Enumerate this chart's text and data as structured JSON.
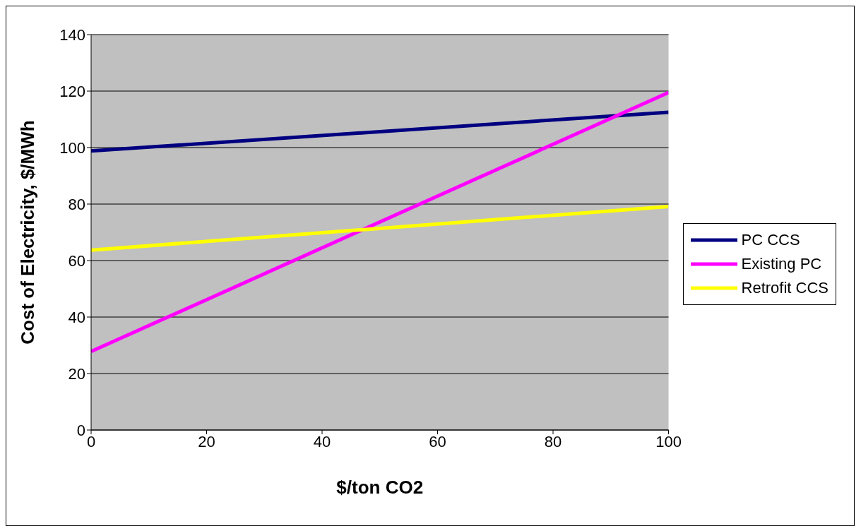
{
  "chart_data": {
    "type": "line",
    "xlabel": "$/ton CO2",
    "ylabel": "Cost of Electricity, $/MWh",
    "x": [
      0,
      100
    ],
    "series": [
      {
        "name": "PC CCS",
        "color": "#000080",
        "values": [
          98.8,
          112.5
        ]
      },
      {
        "name": "Existing PC",
        "color": "#ff00ff",
        "values": [
          27.8,
          119.5
        ]
      },
      {
        "name": "Retrofit CCS",
        "color": "#ffff00",
        "values": [
          63.7,
          79.1
        ]
      }
    ],
    "xlim": [
      0,
      100
    ],
    "xticks": [
      0,
      20,
      40,
      60,
      80,
      100
    ],
    "ylim": [
      0,
      140
    ],
    "yticks": [
      0,
      20,
      40,
      60,
      80,
      100,
      120,
      140
    ],
    "grid": "y",
    "legend": "right",
    "marker": "none",
    "line_style": "solid"
  }
}
